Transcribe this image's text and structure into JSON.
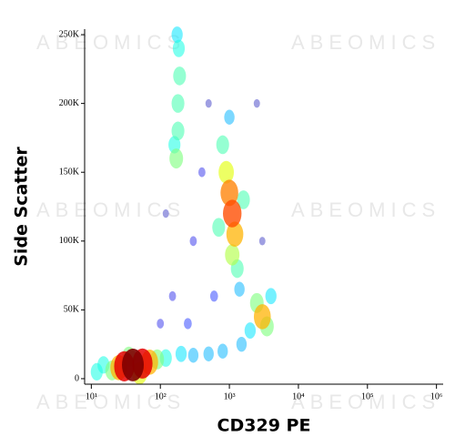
{
  "chart_data": {
    "type": "scatter",
    "watermark": "ABEOMICS",
    "x_label": "CD329 PE",
    "y_label": "Side Scatter",
    "x_scale": "log",
    "xlim": [
      8,
      1250000
    ],
    "ylim": [
      -4000,
      254000
    ],
    "xticks": [
      {
        "value": 10,
        "label": "10¹"
      },
      {
        "value": 100,
        "label": "10²"
      },
      {
        "value": 1000,
        "label": "10³"
      },
      {
        "value": 10000,
        "label": "10⁴"
      },
      {
        "value": 100000,
        "label": "10⁵"
      },
      {
        "value": 1000000,
        "label": "10⁶"
      }
    ],
    "yticks": [
      0,
      {
        "value": 50000,
        "label": "50K"
      },
      {
        "value": 100000,
        "label": "100K"
      },
      {
        "value": 150000,
        "label": "150K"
      },
      {
        "value": 200000,
        "label": "200K"
      },
      {
        "value": 250000,
        "label": "250K"
      }
    ],
    "x": [
      40,
      30,
      55,
      25,
      70,
      20,
      15,
      12,
      90,
      120,
      35,
      50,
      200,
      300,
      500,
      800,
      1500,
      3000,
      2500,
      3500,
      4000,
      2000,
      1100,
      1000,
      1200,
      900,
      1100,
      800,
      1300,
      700,
      1600,
      1000,
      1400,
      170,
      180,
      180,
      190,
      185,
      175,
      160,
      300,
      400,
      150,
      250,
      600,
      500,
      3000,
      120,
      2500,
      100
    ],
    "values": [
      10000,
      9000,
      11000,
      8000,
      12000,
      6000,
      10000,
      5000,
      14000,
      15000,
      16000,
      4000,
      18000,
      17000,
      18000,
      20000,
      25000,
      45000,
      55000,
      38000,
      60000,
      35000,
      120000,
      135000,
      105000,
      150000,
      90000,
      170000,
      80000,
      110000,
      130000,
      190000,
      65000,
      160000,
      180000,
      200000,
      220000,
      240000,
      250000,
      170000,
      100000,
      150000,
      60000,
      40000,
      60000,
      200000,
      100000,
      120000,
      200000,
      40000
    ],
    "density": [
      1,
      0.9,
      0.9,
      0.7,
      0.7,
      0.5,
      0.4,
      0.4,
      0.5,
      0.4,
      0.5,
      0.6,
      0.35,
      0.3,
      0.3,
      0.3,
      0.3,
      0.7,
      0.5,
      0.5,
      0.35,
      0.35,
      0.8,
      0.75,
      0.7,
      0.6,
      0.55,
      0.45,
      0.45,
      0.45,
      0.45,
      0.3,
      0.3,
      0.5,
      0.45,
      0.45,
      0.45,
      0.4,
      0.35,
      0.4,
      0.1,
      0.1,
      0.1,
      0.15,
      0.15,
      0.05,
      0.05,
      0.05,
      0.05,
      0.1
    ]
  }
}
